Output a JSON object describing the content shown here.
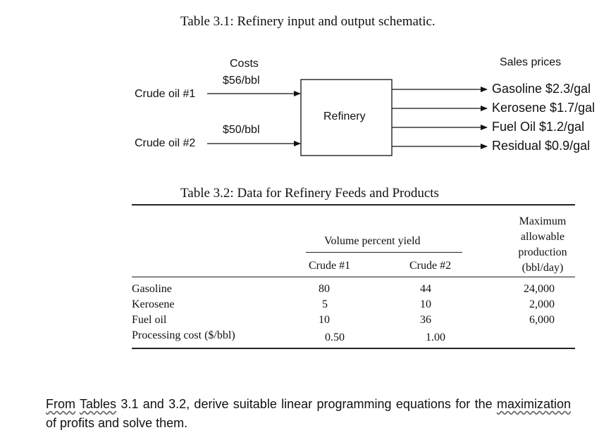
{
  "table31": {
    "title": "Table 3.1: Refinery input and output schematic.",
    "costs_header": "Costs",
    "sales_header": "Sales prices",
    "inputs": [
      {
        "label": "Crude oil #1",
        "cost": "$56/bbl"
      },
      {
        "label": "Crude oil #2",
        "cost": "$50/bbl"
      }
    ],
    "refinery_label": "Refinery",
    "outputs": [
      "Gasoline $2.3/gal",
      "Kerosene $1.7/gal",
      "Fuel Oil $1.2/gal",
      "Residual $0.9/gal"
    ]
  },
  "table32": {
    "title": "Table 3.2: Data for Refinery Feeds and Products",
    "group_header": "Volume percent yield",
    "col_crude1": "Crude #1",
    "col_crude2": "Crude #2",
    "col_max": [
      "Maximum",
      "allowable",
      "production",
      "(bbl/day)"
    ],
    "rows": [
      {
        "label": "Gasoline",
        "c1": "80",
        "c2": "44",
        "max": "24,000"
      },
      {
        "label": "Kerosene",
        "c1": "5",
        "c2": "10",
        "max": "2,000"
      },
      {
        "label": "Fuel oil",
        "c1": "10",
        "c2": "36",
        "max": "6,000"
      },
      {
        "label": "Processing cost ($/bbl)",
        "c1": "0.50",
        "c2": "1.00",
        "max": ""
      }
    ]
  },
  "question": {
    "part1": "From",
    "part2": "Tables",
    "part3": "3.1 and 3.2, derive suitable linear programming equations for the",
    "part4": "maximization",
    "part5": "of profits and solve them."
  }
}
